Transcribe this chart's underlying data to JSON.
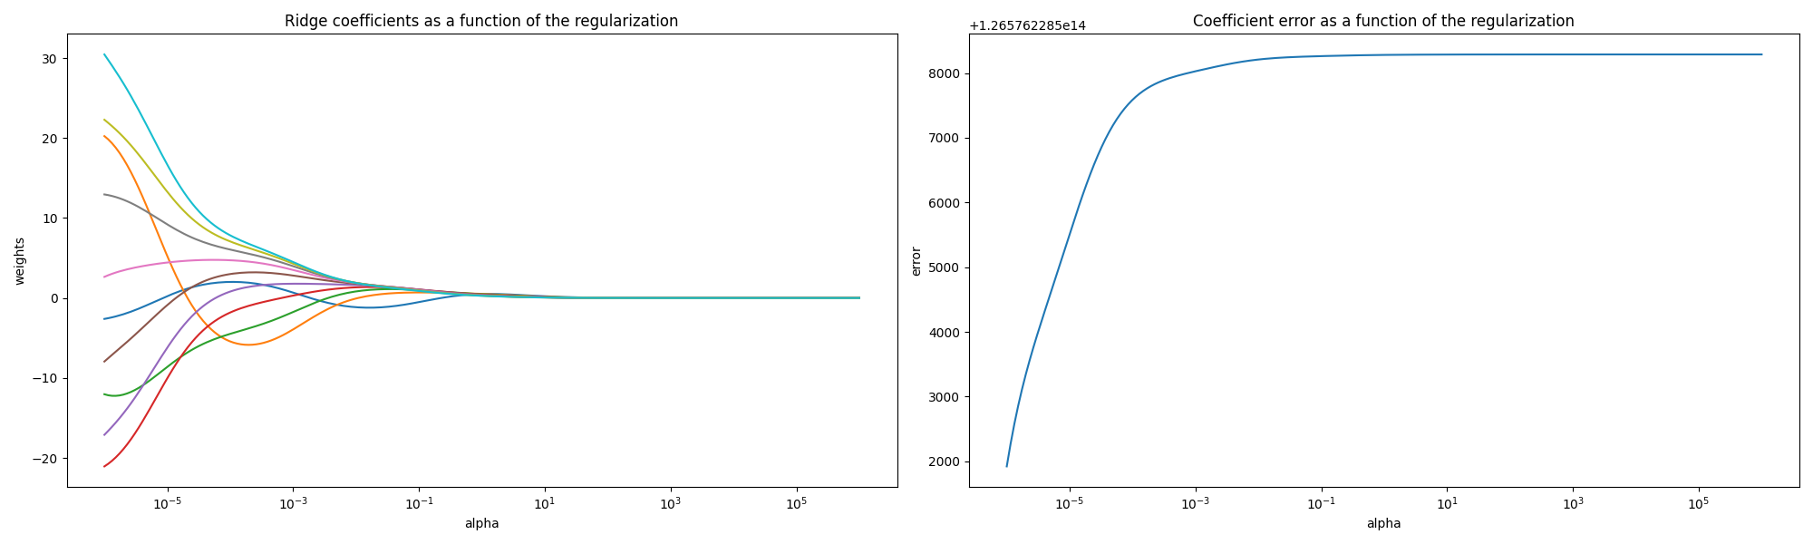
{
  "title1": "Ridge coefficients as a function of the regularization",
  "title2": "Coefficient error as a function of the regularization",
  "xlabel": "alpha",
  "ylabel1": "weights",
  "ylabel2": "error",
  "figsize": [
    20,
    6
  ],
  "dpi": 100,
  "n_alphas": 200,
  "n_samples": 10,
  "n_features": 10
}
